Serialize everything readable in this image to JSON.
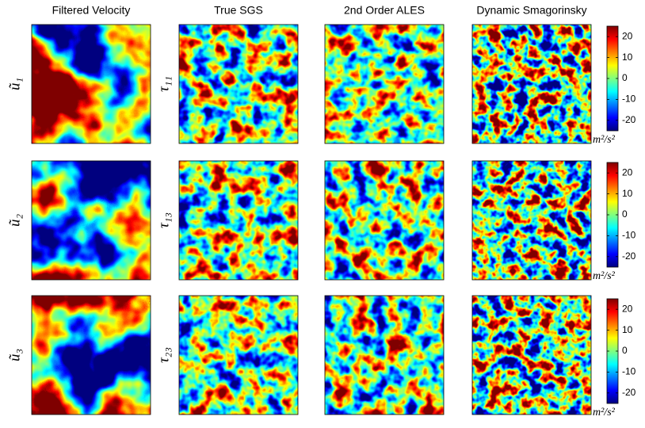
{
  "columns": [
    "Filtered Velocity",
    "True SGS",
    "2nd Order ALES",
    "Dynamic Smagorinsky"
  ],
  "rows": [
    {
      "velocity_label": "ũ₁",
      "stress_label": "τ₁₁"
    },
    {
      "velocity_label": "ũ₂",
      "stress_label": "τ₁₃"
    },
    {
      "velocity_label": "ũ₃",
      "stress_label": "τ₂₃"
    }
  ],
  "colorbars": [
    {
      "lim": [
        -25,
        25
      ],
      "ticks": [
        20,
        10,
        0,
        -10,
        -20
      ],
      "unit": "m²/s²"
    },
    {
      "lim": [
        -25,
        25
      ],
      "ticks": [
        20,
        10,
        0,
        -10,
        -20
      ],
      "unit": "m²/s²"
    },
    {
      "lim": [
        -25,
        25
      ],
      "ticks": [
        20,
        10,
        0,
        -10,
        -20
      ],
      "unit": "m²/s²"
    }
  ]
}
